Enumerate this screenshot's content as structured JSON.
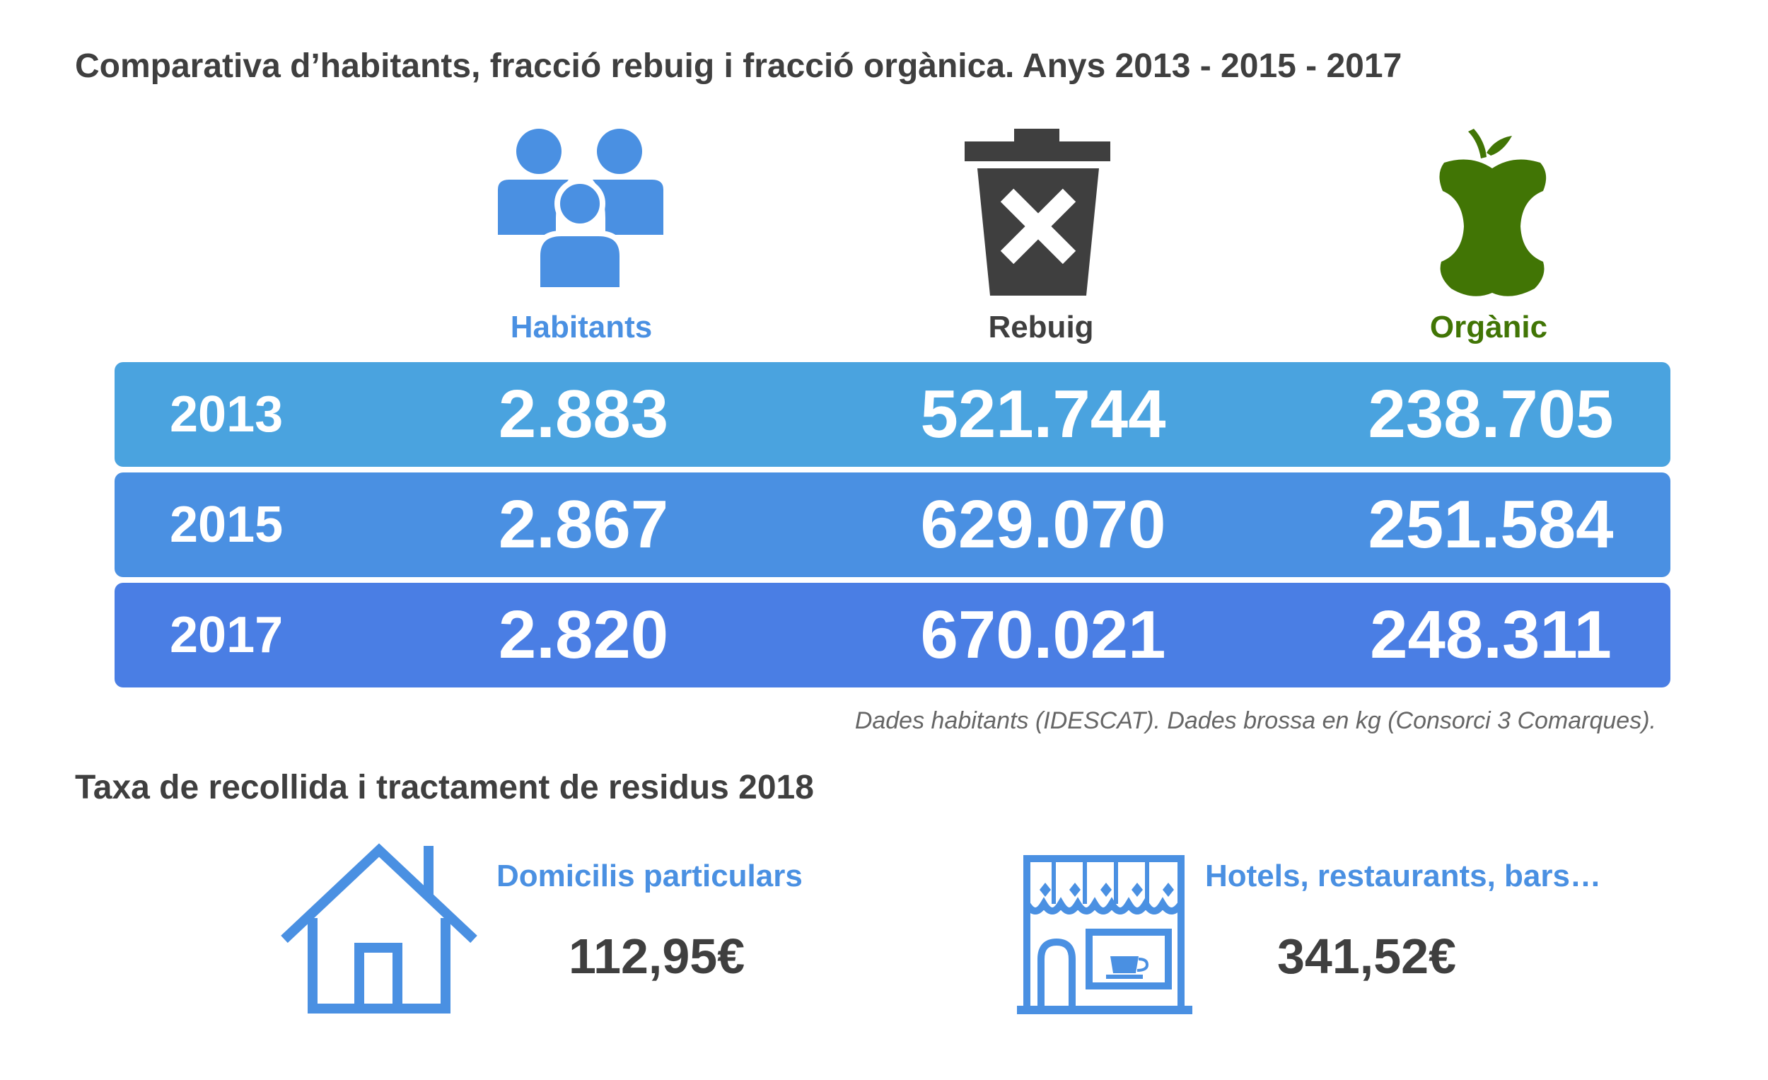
{
  "header": {
    "title": "Comparativa d’habitants, fracció rebuig i fracció orgànica. Anys 2013 - 2015 - 2017"
  },
  "columns": [
    {
      "label": "Habitants",
      "icon": "people-icon",
      "color": "#4a90e2"
    },
    {
      "label": "Rebuig",
      "icon": "trash-bin-icon",
      "color": "#3f3f3f"
    },
    {
      "label": "Orgànic",
      "icon": "apple-core-icon",
      "color": "#417505"
    }
  ],
  "rows": [
    {
      "year": "2013",
      "habitants": "2.883",
      "rebuig": "521.744",
      "organic": "238.705",
      "color": "#4aa3df"
    },
    {
      "year": "2015",
      "habitants": "2.867",
      "rebuig": "629.070",
      "organic": "251.584",
      "color": "#4a90e2"
    },
    {
      "year": "2017",
      "habitants": "2.820",
      "rebuig": "670.021",
      "organic": "248.311",
      "color": "#4a7ee4"
    }
  ],
  "note": "Dades habitants (IDESCAT). Dades brossa en kg (Consorci 3 Comarques).",
  "fees": {
    "title": "Taxa de recollida i tractament de residus 2018",
    "items": [
      {
        "label": "Domicilis particulars",
        "value": "112,95€",
        "icon": "house-icon"
      },
      {
        "label": "Hotels, restaurants, bars…",
        "value": "341,52€",
        "icon": "shop-icon"
      }
    ]
  }
}
